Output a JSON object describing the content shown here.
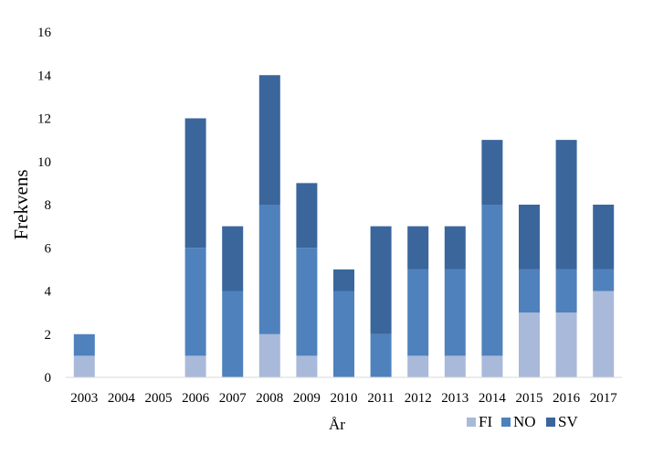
{
  "chart_data": {
    "type": "bar",
    "stacked": true,
    "categories": [
      "2003",
      "2004",
      "2005",
      "2006",
      "2007",
      "2008",
      "2009",
      "2010",
      "2011",
      "2012",
      "2013",
      "2014",
      "2015",
      "2016",
      "2017"
    ],
    "series": [
      {
        "name": "FI",
        "color": "#a9b9d9",
        "values": [
          1,
          0,
          0,
          1,
          0,
          2,
          1,
          0,
          0,
          1,
          1,
          1,
          3,
          3,
          4
        ]
      },
      {
        "name": "NO",
        "color": "#4f81bd",
        "values": [
          1,
          0,
          0,
          5,
          4,
          6,
          5,
          4,
          2,
          4,
          4,
          7,
          2,
          2,
          1
        ]
      },
      {
        "name": "SV",
        "color": "#3a669c",
        "values": [
          0,
          0,
          0,
          6,
          3,
          6,
          3,
          1,
          5,
          2,
          2,
          3,
          3,
          6,
          3
        ]
      }
    ],
    "xlabel": "År",
    "ylabel": "Frekvens",
    "ylim": [
      0,
      16
    ],
    "yticks": [
      0,
      2,
      4,
      6,
      8,
      10,
      12,
      14,
      16
    ],
    "grid": false,
    "legend": "bottom-right"
  }
}
